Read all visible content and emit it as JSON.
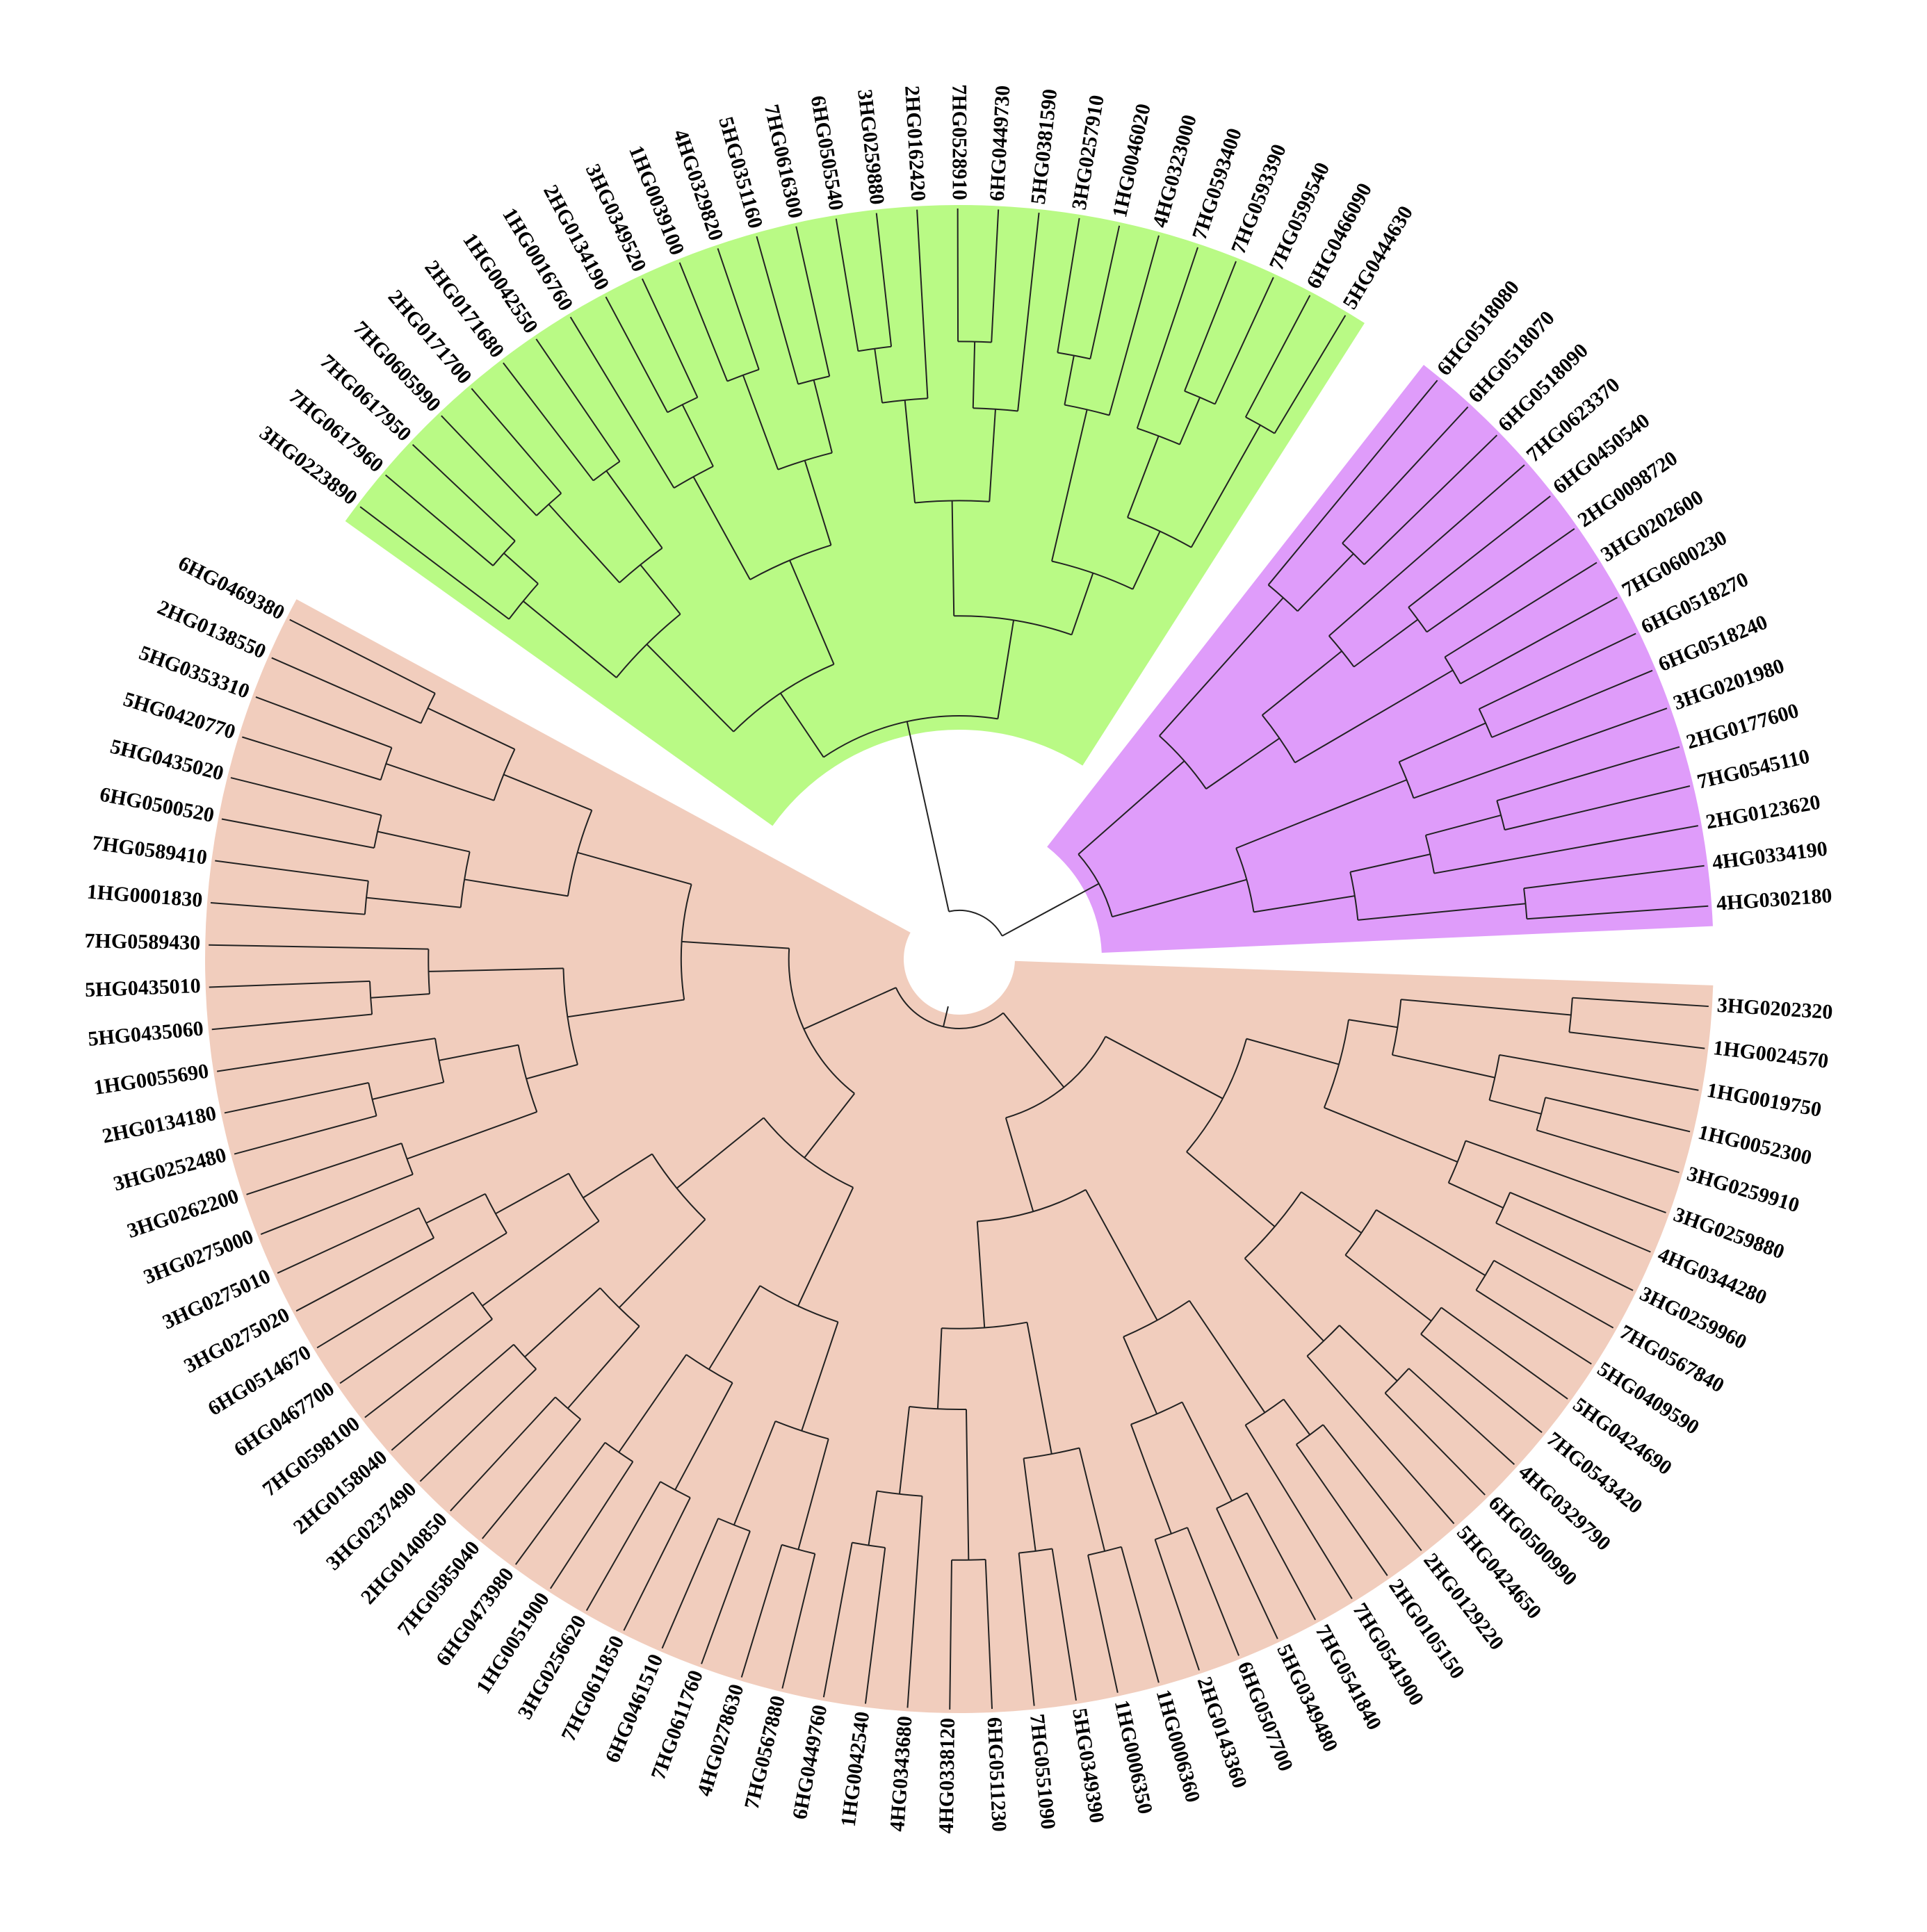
{
  "diagram": {
    "type": "circular-dendrogram",
    "colors": {
      "clade_green": "#b9fa85",
      "clade_purple": "#df9cfa",
      "clade_salmon": "#f1cdbd",
      "branch": "#222222",
      "background": "#ffffff"
    },
    "clades": [
      {
        "name": "green",
        "color_key": "clade_green",
        "leaves": [
          "3HG0223890",
          "7HG0617960",
          "7HG0617950",
          "7HG0605990",
          "2HG0171700",
          "2HG0171680",
          "1HG0042550",
          "1HG0016760",
          "2HG0134190",
          "3HG0349520",
          "1HG0039100",
          "4HG0329820",
          "5HG0351160",
          "7HG0616300",
          "6HG0505540",
          "3HG0259880",
          "2HG0162420",
          "7HG0528910",
          "6HG0449730",
          "5HG0381590",
          "3HG0257910",
          "1HG0046020",
          "4HG0323000",
          "7HG0593400",
          "7HG0593390",
          "7HG0599540",
          "6HG0466090",
          "5HG0444630"
        ]
      },
      {
        "name": "purple",
        "color_key": "clade_purple",
        "leaves": [
          "6HG0518080",
          "6HG0518070",
          "6HG0518090",
          "7HG0623370",
          "6HG0450540",
          "2HG0098720",
          "3HG0202600",
          "7HG0600230",
          "6HG0518270",
          "6HG0518240",
          "3HG0201980",
          "2HG0177600",
          "7HG0545110",
          "2HG0123620",
          "4HG0334190",
          "4HG0302180"
        ]
      },
      {
        "name": "salmon",
        "color_key": "clade_salmon",
        "leaves": [
          "3HG0202320",
          "1HG0024570",
          "1HG0019750",
          "1HG0052300",
          "3HG0259910",
          "3HG0259880",
          "4HG0344280",
          "3HG0259960",
          "7HG0567840",
          "5HG0409590",
          "5HG0424690",
          "7HG0543420",
          "4HG0329790",
          "6HG0500990",
          "5HG0424650",
          "2HG0129220",
          "2HG0105150",
          "7HG0541900",
          "7HG0541840",
          "5HG0349480",
          "6HG0507700",
          "2HG0143360",
          "1HG0006360",
          "1HG0006350",
          "5HG0349390",
          "7HG0551090",
          "6HG0511230",
          "4HG0338120",
          "4HG0343680",
          "1HG0042540",
          "6HG0449760",
          "7HG0567880",
          "4HG0278630",
          "7HG0611760",
          "6HG0461510",
          "7HG0611850",
          "3HG0256620",
          "1HG0051900",
          "6HG0473980",
          "7HG0585040",
          "2HG0140850",
          "3HG0237490",
          "2HG0158040",
          "7HG0598100",
          "6HG0467700",
          "6HG0514670",
          "3HG0275020",
          "3HG0275010",
          "3HG0275000",
          "3HG0262200",
          "3HG0252480",
          "2HG0134180",
          "1HG0055690",
          "5HG0435060",
          "5HG0435010",
          "7HG0589430",
          "1HG0001830",
          "7HG0589410",
          "6HG0500520",
          "5HG0435020",
          "5HG0420770",
          "5HG0353310",
          "2HG0138550",
          "6HG0469380"
        ]
      }
    ]
  }
}
